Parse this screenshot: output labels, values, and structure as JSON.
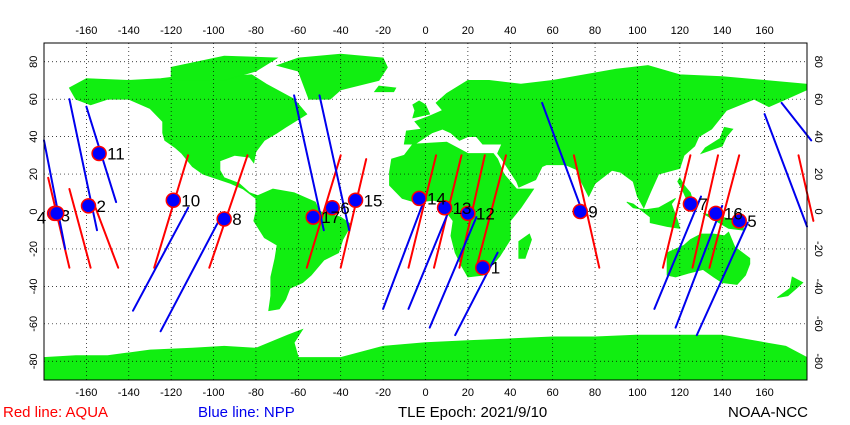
{
  "legend": {
    "aqua_label": "Red line: AQUA",
    "npp_label": "Blue line: NPP",
    "epoch_label": "TLE Epoch: 2021/9/10",
    "credit": "NOAA-NCC"
  },
  "colors": {
    "ocean": "#ffffff",
    "land": "#11ee11",
    "aqua": "#ff0000",
    "npp": "#0000ee",
    "marker_outline": "#ff0000",
    "marker_fill": "#0000ff"
  },
  "map": {
    "lon_ticks": [
      -160,
      -140,
      -120,
      -100,
      -80,
      -60,
      -40,
      -20,
      0,
      20,
      40,
      60,
      80,
      100,
      120,
      140,
      160
    ],
    "lat_ticks": [
      80,
      60,
      40,
      20,
      0,
      -20,
      -40,
      -60,
      -80
    ],
    "lon_range": [
      -180,
      180
    ],
    "lat_range": [
      -90,
      90
    ]
  },
  "markers": [
    {
      "label": "1",
      "lon": 27,
      "lat": -30
    },
    {
      "label": "2",
      "lon": -159,
      "lat": 3
    },
    {
      "label": "3",
      "lon": -175,
      "lat": -1
    },
    {
      "label": "4",
      "lon": -174,
      "lat": -1
    },
    {
      "label": "5",
      "lon": 148,
      "lat": -5
    },
    {
      "label": "6",
      "lon": -44,
      "lat": 2
    },
    {
      "label": "7",
      "lon": 125,
      "lat": 4
    },
    {
      "label": "8",
      "lon": -95,
      "lat": -4
    },
    {
      "label": "9",
      "lon": 73,
      "lat": 0
    },
    {
      "label": "10",
      "lon": -119,
      "lat": 6
    },
    {
      "label": "11",
      "lon": -154,
      "lat": 31
    },
    {
      "label": "12",
      "lon": 20,
      "lat": -1
    },
    {
      "label": "13",
      "lon": 9,
      "lat": 2
    },
    {
      "label": "14",
      "lon": -3,
      "lat": 7
    },
    {
      "label": "15",
      "lon": -33,
      "lat": 6
    },
    {
      "label": "16",
      "lon": 137,
      "lat": -1
    },
    {
      "label": "17",
      "lon": -53,
      "lat": -3
    }
  ]
}
